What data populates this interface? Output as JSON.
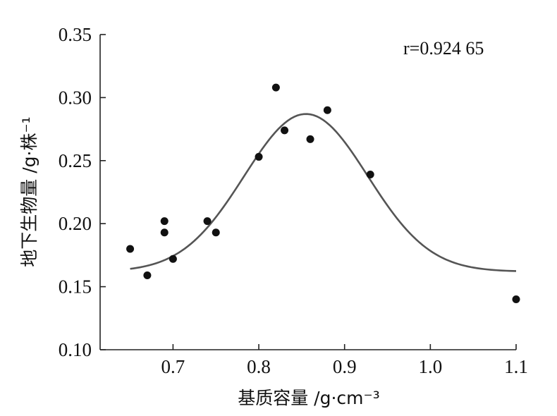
{
  "chart_data": {
    "type": "scatter",
    "title": "",
    "annotation": "r=0.924 65",
    "xlabel": "基质容量 /g·cm⁻³",
    "ylabel": "地下生物量 /g·株⁻¹",
    "xlim": [
      0.615,
      1.1
    ],
    "ylim": [
      0.1,
      0.35
    ],
    "xticks": [
      0.7,
      0.8,
      0.9,
      1.0,
      1.1
    ],
    "xtick_labels": [
      "0.7",
      "0.8",
      "0.9",
      "1.0",
      "1.1"
    ],
    "yticks": [
      0.1,
      0.15,
      0.2,
      0.25,
      0.3,
      0.35
    ],
    "ytick_labels": [
      "0.10",
      "0.15",
      "0.20",
      "0.25",
      "0.30",
      "0.35"
    ],
    "grid": false,
    "legend": "none",
    "series": [
      {
        "points": [
          {
            "x": 0.65,
            "y": 0.18
          },
          {
            "x": 0.67,
            "y": 0.159
          },
          {
            "x": 0.69,
            "y": 0.202
          },
          {
            "x": 0.69,
            "y": 0.193
          },
          {
            "x": 0.7,
            "y": 0.172
          },
          {
            "x": 0.74,
            "y": 0.202
          },
          {
            "x": 0.75,
            "y": 0.193
          },
          {
            "x": 0.8,
            "y": 0.253
          },
          {
            "x": 0.82,
            "y": 0.308
          },
          {
            "x": 0.83,
            "y": 0.274
          },
          {
            "x": 0.86,
            "y": 0.267
          },
          {
            "x": 0.88,
            "y": 0.29
          },
          {
            "x": 0.93,
            "y": 0.239
          },
          {
            "x": 1.1,
            "y": 0.14
          }
        ]
      }
    ],
    "fit_curve": {
      "type": "gaussian",
      "x_range": [
        0.65,
        1.1
      ],
      "peak": {
        "x": 0.855,
        "y": 0.287
      }
    }
  }
}
